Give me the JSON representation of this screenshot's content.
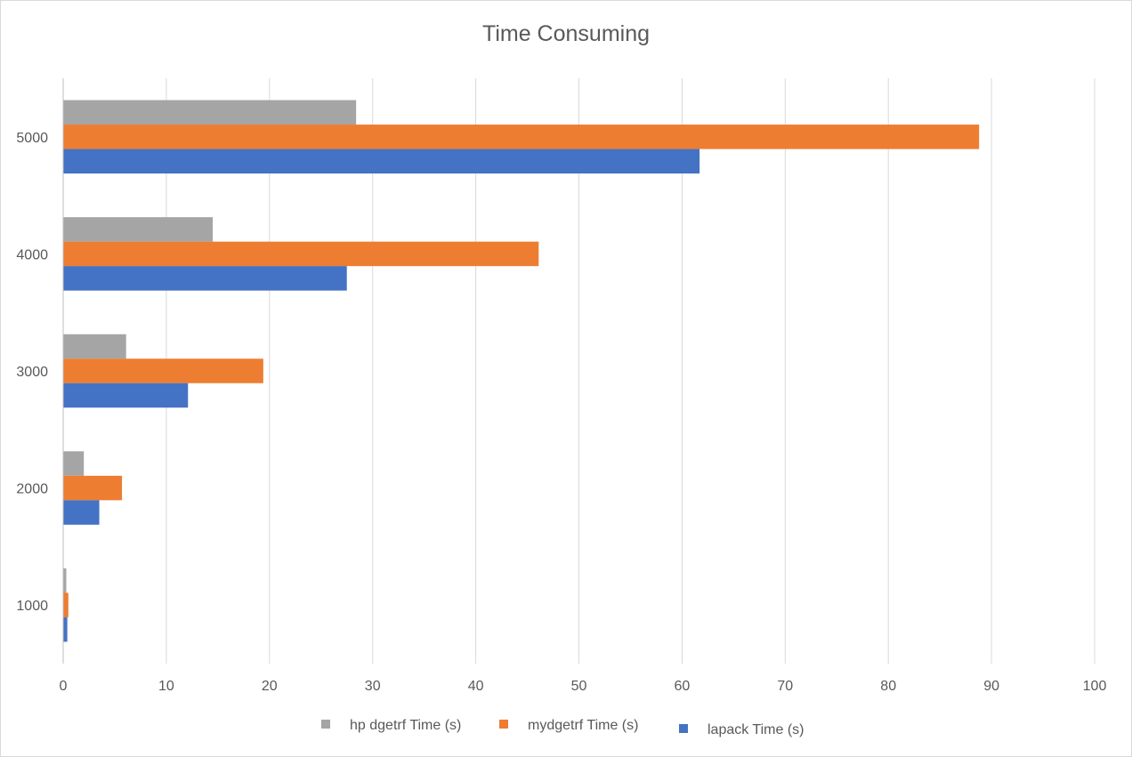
{
  "chart_data": {
    "type": "bar",
    "orientation": "horizontal",
    "title": "Time Consuming",
    "categories": [
      "1000",
      "2000",
      "3000",
      "4000",
      "5000"
    ],
    "series": [
      {
        "name": "hp dgetrf Time (s)",
        "color": "#a5a5a5",
        "values": [
          0.3,
          2.0,
          6.1,
          14.5,
          28.4
        ]
      },
      {
        "name": "mydgetrf Time (s)",
        "color": "#ed7d31",
        "values": [
          0.5,
          5.7,
          19.4,
          46.1,
          88.8
        ]
      },
      {
        "name": "lapack Time (s)",
        "color": "#4472c4",
        "values": [
          0.4,
          3.5,
          12.1,
          27.5,
          61.7
        ]
      }
    ],
    "x_ticks": [
      "0",
      "10",
      "20",
      "30",
      "40",
      "50",
      "60",
      "70",
      "80",
      "90",
      "100"
    ],
    "xlim": [
      0,
      100
    ],
    "grid": true,
    "legend_position": "bottom"
  }
}
